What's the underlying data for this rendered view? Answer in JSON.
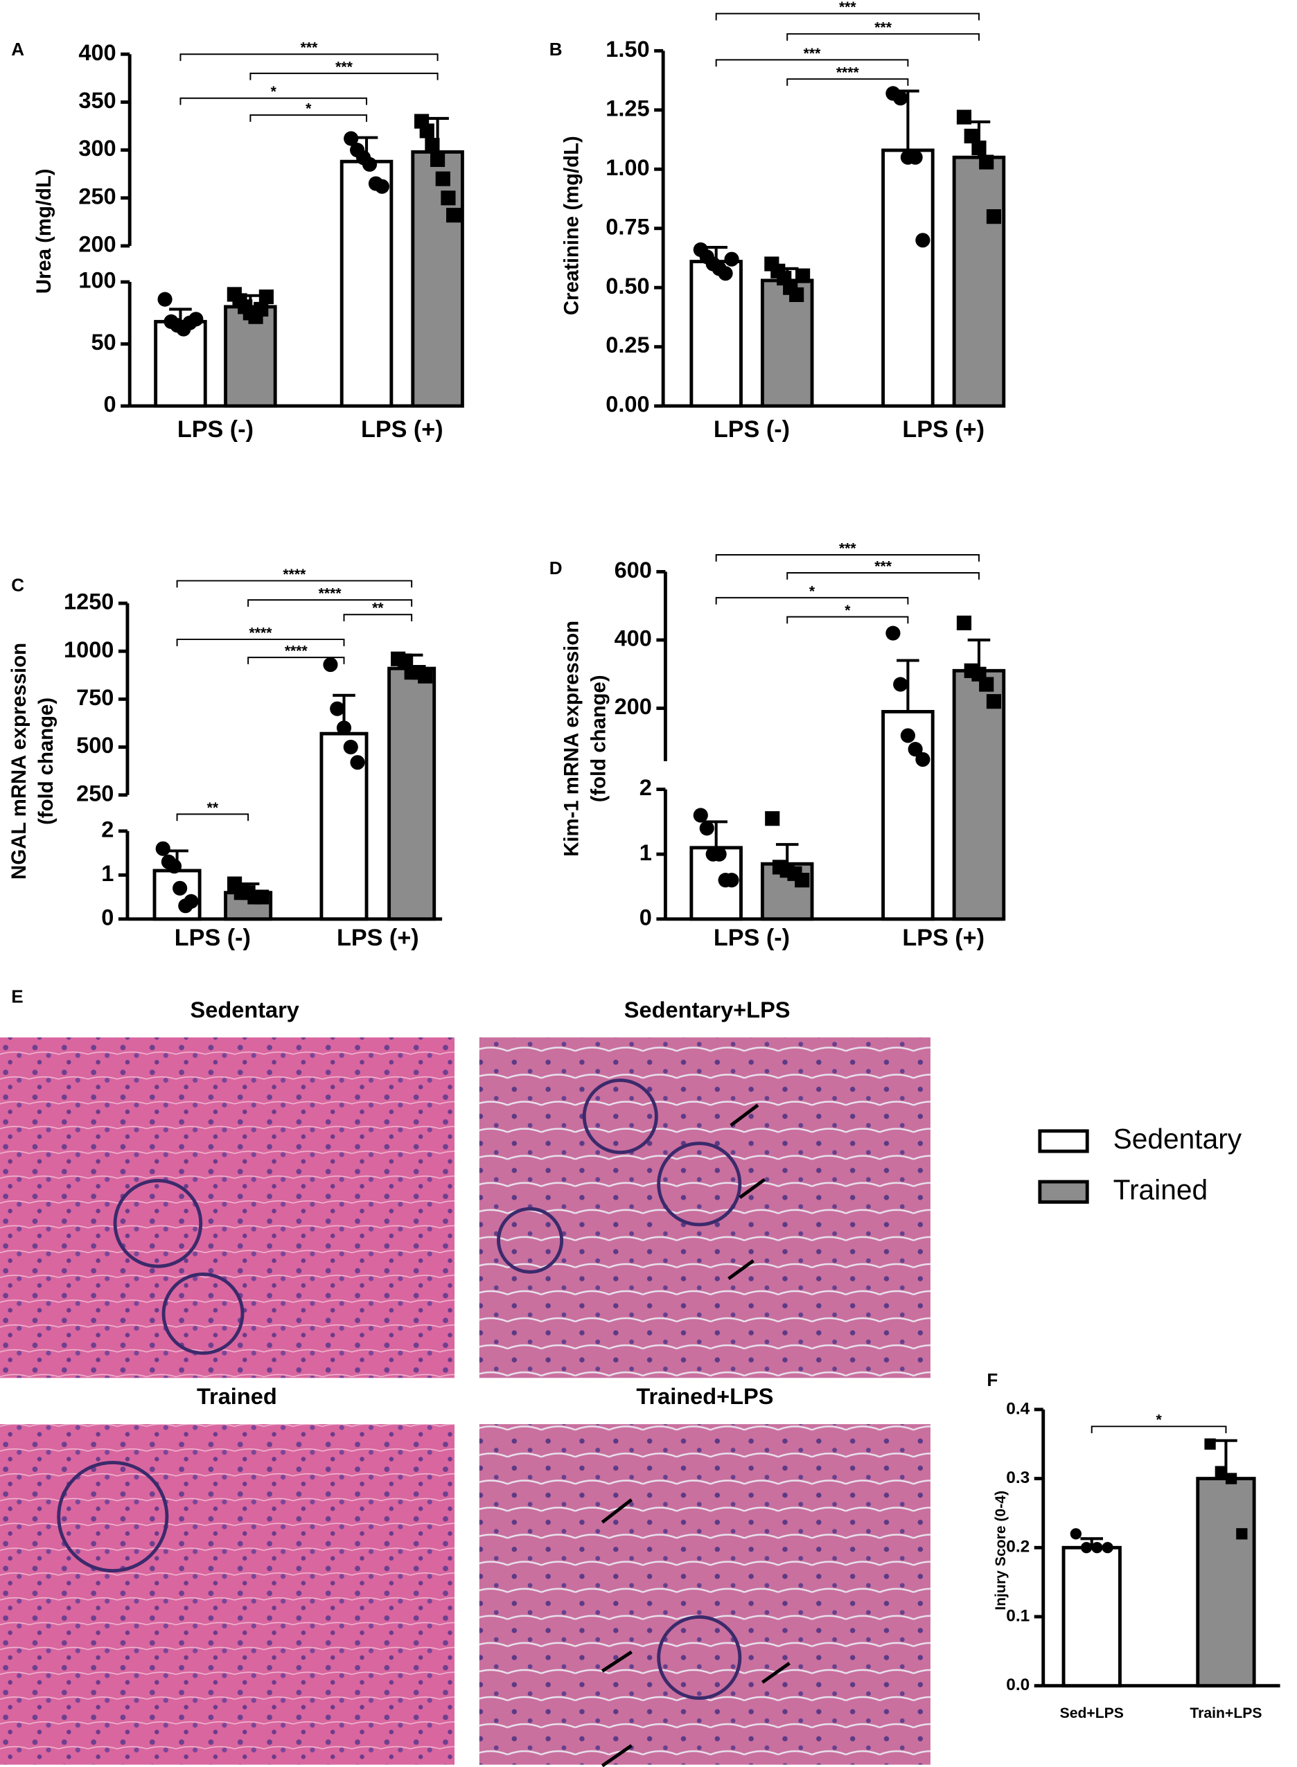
{
  "chart_data": [
    {
      "type": "bar",
      "panel": "A",
      "ylabel": "Urea (mg/dL)",
      "categories": [
        "LPS (-)",
        "LPS (+)"
      ],
      "ylim": [
        0,
        400
      ],
      "ybreak": [
        100,
        200
      ],
      "yticks": [
        0,
        50,
        100,
        200,
        250,
        300,
        350,
        400
      ],
      "legend": "right",
      "series": [
        {
          "name": "Sedentary",
          "color": "#ffffff",
          "marker": "circle",
          "values": [
            68,
            288
          ],
          "errors": [
            10,
            25
          ],
          "points": [
            [
              86,
              68,
              65,
              62,
              67,
              70
            ],
            [
              312,
              300,
              292,
              285,
              265,
              262
            ]
          ]
        },
        {
          "name": "Trained",
          "color": "#8c8c8c",
          "marker": "square",
          "values": [
            80,
            298
          ],
          "errors": [
            9,
            35
          ],
          "points": [
            [
              90,
              85,
              80,
              75,
              72,
              78,
              88
            ],
            [
              330,
              320,
              305,
              290,
              270,
              250,
              232
            ]
          ]
        }
      ],
      "annotations": [
        {
          "text": "***",
          "between": [
            0,
            3
          ]
        },
        {
          "text": "***",
          "between": [
            1,
            3
          ]
        },
        {
          "text": "*",
          "between": [
            0,
            2
          ]
        },
        {
          "text": "*",
          "between": [
            1,
            2
          ]
        }
      ]
    },
    {
      "type": "bar",
      "panel": "B",
      "ylabel": "Creatinine (mg/dL)",
      "categories": [
        "LPS (-)",
        "LPS (+)"
      ],
      "ylim": [
        0,
        1.5
      ],
      "yticks": [
        {
          "value": 0,
          "label": "0.00"
        },
        {
          "value": 0.25,
          "label": "0.25"
        },
        {
          "value": 0.5,
          "label": "0.50"
        },
        {
          "value": 0.75,
          "label": "0.75"
        },
        {
          "value": 1,
          "label": "1.00"
        },
        {
          "value": 1.25,
          "label": "1.25"
        },
        {
          "value": 1.5,
          "label": "1.50"
        }
      ],
      "series": [
        {
          "name": "Sedentary",
          "color": "#ffffff",
          "marker": "circle",
          "values": [
            0.61,
            1.08
          ],
          "errors": [
            0.06,
            0.25
          ],
          "points": [
            [
              0.66,
              0.63,
              0.6,
              0.58,
              0.56,
              0.62
            ],
            [
              1.32,
              1.3,
              1.05,
              1.05,
              0.7
            ]
          ]
        },
        {
          "name": "Trained",
          "color": "#8c8c8c",
          "marker": "square",
          "values": [
            0.53,
            1.05
          ],
          "errors": [
            0.05,
            0.15
          ],
          "points": [
            [
              0.6,
              0.57,
              0.54,
              0.5,
              0.47,
              0.55
            ],
            [
              1.22,
              1.14,
              1.09,
              1.03,
              0.8
            ]
          ]
        }
      ],
      "annotations": [
        {
          "text": "***",
          "between": [
            0,
            3
          ]
        },
        {
          "text": "***",
          "between": [
            1,
            3
          ]
        },
        {
          "text": "***",
          "between": [
            0,
            2
          ]
        },
        {
          "text": "****",
          "between": [
            1,
            2
          ]
        }
      ]
    },
    {
      "type": "bar",
      "panel": "C",
      "ylabel": [
        "NGAL mRNA expression",
        "(fold change)"
      ],
      "categories": [
        "LPS (-)",
        "LPS (+)"
      ],
      "ylim": [
        0,
        1250
      ],
      "ybreak": [
        2,
        250
      ],
      "yticks": [
        0,
        1,
        2,
        250,
        500,
        750,
        1000,
        1250
      ],
      "series": [
        {
          "name": "Sedentary",
          "color": "#ffffff",
          "marker": "circle",
          "values": [
            1.1,
            570
          ],
          "errors": [
            0.45,
            200
          ],
          "points": [
            [
              1.6,
              1.3,
              1.2,
              0.7,
              0.3,
              0.4
            ],
            [
              930,
              700,
              600,
              500,
              420
            ]
          ]
        },
        {
          "name": "Trained",
          "color": "#8c8c8c",
          "marker": "square",
          "values": [
            0.6,
            910
          ],
          "errors": [
            0.2,
            70
          ],
          "points": [
            [
              0.8,
              0.6,
              0.6,
              0.5,
              0.5
            ],
            [
              960,
              950,
              890,
              890,
              870
            ]
          ]
        }
      ],
      "annotations": [
        {
          "text": "****",
          "between": [
            0,
            3
          ]
        },
        {
          "text": "****",
          "between": [
            1,
            3
          ]
        },
        {
          "text": "**",
          "between": [
            2,
            3
          ]
        },
        {
          "text": "****",
          "between": [
            0,
            2
          ]
        },
        {
          "text": "****",
          "between": [
            1,
            2
          ]
        },
        {
          "text": "**",
          "between": [
            0,
            1
          ]
        }
      ]
    },
    {
      "type": "bar",
      "panel": "D",
      "ylabel": [
        "Kim-1 mRNA expression",
        "(fold change)"
      ],
      "categories": [
        "LPS (-)",
        "LPS (+)"
      ],
      "ylim": [
        0,
        600
      ],
      "ybreak": [
        2,
        45
      ],
      "yticks": [
        0,
        1,
        2,
        200,
        400,
        600
      ],
      "series": [
        {
          "name": "Sedentary",
          "color": "#ffffff",
          "marker": "circle",
          "values": [
            1.1,
            190
          ],
          "errors": [
            0.4,
            150
          ],
          "points": [
            [
              1.6,
              1.4,
              1.0,
              1.0,
              0.6,
              0.6
            ],
            [
              420,
              270,
              120,
              80,
              50
            ]
          ]
        },
        {
          "name": "Trained",
          "color": "#8c8c8c",
          "marker": "square",
          "values": [
            0.85,
            310
          ],
          "errors": [
            0.3,
            90
          ],
          "points": [
            [
              1.55,
              0.8,
              0.75,
              0.7,
              0.6
            ],
            [
              450,
              310,
              300,
              270,
              220
            ]
          ]
        }
      ],
      "annotations": [
        {
          "text": "***",
          "between": [
            0,
            3
          ]
        },
        {
          "text": "***",
          "between": [
            1,
            3
          ]
        },
        {
          "text": "*",
          "between": [
            0,
            2
          ]
        },
        {
          "text": "*",
          "between": [
            1,
            2
          ]
        }
      ]
    },
    {
      "type": "bar",
      "panel": "F",
      "ylabel": "Injury Score (0-4)",
      "categories": [
        "Sed+LPS",
        "Train+LPS"
      ],
      "ylim": [
        0,
        0.4
      ],
      "yticks": [
        {
          "value": 0,
          "label": "0.0"
        },
        {
          "value": 0.1,
          "label": "0.1"
        },
        {
          "value": 0.2,
          "label": "0.2"
        },
        {
          "value": 0.3,
          "label": "0.3"
        },
        {
          "value": 0.4,
          "label": "0.4"
        }
      ],
      "values": [
        0.2,
        0.3
      ],
      "errors": [
        0.013,
        0.055
      ],
      "colors": [
        "#ffffff",
        "#8c8c8c"
      ],
      "markers": [
        "circle",
        "square"
      ],
      "points": [
        [
          0.22,
          0.2,
          0.2,
          0.2
        ],
        [
          0.35,
          0.31,
          0.3,
          0.22
        ]
      ],
      "annotations": [
        {
          "text": "*",
          "between": [
            0,
            1
          ]
        }
      ]
    }
  ],
  "histology": {
    "panel": "E",
    "titles": [
      "Sedentary",
      "Sedentary+LPS",
      "Trained",
      "Trained+LPS"
    ]
  }
}
